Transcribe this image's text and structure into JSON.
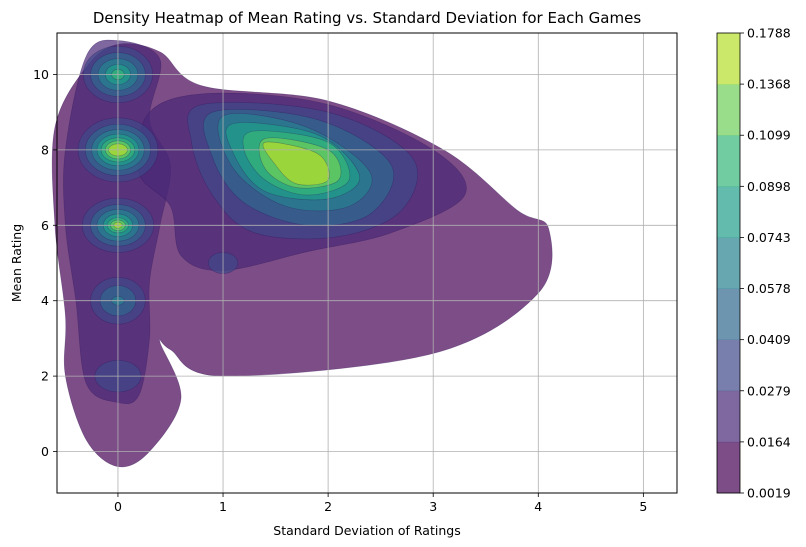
{
  "chart_data": {
    "type": "heatmap",
    "subtype": "kde-density-contour",
    "title": "Density Heatmap of Mean Rating vs. Standard Deviation for Each Games",
    "xlabel": "Standard Deviation of Ratings",
    "ylabel": "Mean Rating",
    "xlim": [
      -0.58,
      5.32
    ],
    "ylim": [
      -1.1,
      11.1
    ],
    "xticks": [
      0,
      1,
      2,
      3,
      4,
      5
    ],
    "yticks": [
      0,
      2,
      4,
      6,
      8,
      10
    ],
    "grid": true,
    "colormap": "viridis",
    "alpha": 0.7,
    "colorbar": {
      "levels": [
        "0.0019",
        "0.0164",
        "0.0279",
        "0.0409",
        "0.0578",
        "0.0743",
        "0.0898",
        "0.1099",
        "0.1368",
        "0.1788"
      ],
      "colors": [
        "#440154",
        "#482878",
        "#3e4989",
        "#31688e",
        "#26828e",
        "#1f9e89",
        "#35b779",
        "#6ece58",
        "#b5de2b"
      ]
    },
    "density_regions": [
      {
        "name": "outer-envelope",
        "level": 0,
        "points": [
          [
            -0.3,
            10.2
          ],
          [
            0.0,
            10.8
          ],
          [
            0.4,
            10.6
          ],
          [
            0.8,
            9.7
          ],
          [
            2.0,
            9.3
          ],
          [
            3.1,
            8.0
          ],
          [
            3.8,
            6.4
          ],
          [
            4.1,
            5.9
          ],
          [
            4.0,
            4.2
          ],
          [
            3.0,
            2.6
          ],
          [
            1.0,
            2.0
          ],
          [
            0.5,
            2.7
          ],
          [
            0.4,
            2.9
          ],
          [
            0.6,
            1.4
          ],
          [
            0.3,
            0.0
          ],
          [
            0.0,
            -0.4
          ],
          [
            -0.3,
            0.3
          ],
          [
            -0.5,
            2.0
          ],
          [
            -0.5,
            3.6
          ],
          [
            -0.6,
            6.0
          ],
          [
            -0.6,
            8.6
          ]
        ]
      },
      {
        "name": "left-column",
        "level": 1,
        "points": [
          [
            -0.3,
            10.5
          ],
          [
            0.0,
            10.9
          ],
          [
            0.4,
            10.4
          ],
          [
            0.3,
            8.8
          ],
          [
            0.5,
            7.6
          ],
          [
            0.4,
            6.0
          ],
          [
            0.3,
            4.5
          ],
          [
            0.3,
            3.0
          ],
          [
            0.2,
            1.5
          ],
          [
            0.0,
            1.3
          ],
          [
            -0.3,
            1.8
          ],
          [
            -0.4,
            4.0
          ],
          [
            -0.5,
            6.0
          ],
          [
            -0.5,
            8.0
          ]
        ]
      },
      {
        "name": "main-ridge",
        "level": 1,
        "points": [
          [
            0.3,
            9.0
          ],
          [
            0.9,
            9.5
          ],
          [
            2.0,
            9.2
          ],
          [
            3.0,
            8.0
          ],
          [
            3.3,
            6.8
          ],
          [
            2.6,
            5.8
          ],
          [
            1.8,
            5.3
          ],
          [
            1.0,
            4.8
          ],
          [
            0.6,
            5.2
          ],
          [
            0.5,
            6.5
          ],
          [
            0.2,
            7.4
          ]
        ]
      },
      {
        "name": "main-ridge",
        "level": 2,
        "points": [
          [
            0.8,
            9.2
          ],
          [
            2.0,
            9.0
          ],
          [
            2.8,
            7.8
          ],
          [
            2.7,
            6.4
          ],
          [
            2.1,
            5.7
          ],
          [
            1.3,
            5.8
          ],
          [
            0.9,
            6.8
          ],
          [
            0.7,
            8.2
          ]
        ]
      },
      {
        "name": "main-ridge",
        "level": 3,
        "points": [
          [
            0.9,
            9.0
          ],
          [
            1.9,
            8.8
          ],
          [
            2.6,
            7.6
          ],
          [
            2.4,
            6.3
          ],
          [
            1.8,
            6.0
          ],
          [
            1.2,
            6.6
          ],
          [
            0.9,
            7.8
          ]
        ]
      },
      {
        "name": "main-ridge",
        "level": 4,
        "points": [
          [
            1.0,
            8.9
          ],
          [
            1.8,
            8.6
          ],
          [
            2.4,
            7.4
          ],
          [
            2.2,
            6.5
          ],
          [
            1.6,
            6.5
          ],
          [
            1.1,
            7.5
          ]
        ]
      },
      {
        "name": "main-ridge",
        "level": 5,
        "points": [
          [
            1.1,
            8.7
          ],
          [
            1.9,
            8.4
          ],
          [
            2.3,
            7.3
          ],
          [
            2.0,
            6.7
          ],
          [
            1.4,
            6.9
          ],
          [
            1.1,
            7.9
          ]
        ]
      },
      {
        "name": "main-ridge",
        "level": 6,
        "points": [
          [
            1.3,
            8.5
          ],
          [
            2.0,
            8.2
          ],
          [
            2.2,
            7.2
          ],
          [
            1.8,
            6.8
          ],
          [
            1.4,
            7.2
          ],
          [
            1.2,
            8.0
          ]
        ]
      },
      {
        "name": "main-ridge",
        "level": 7,
        "points": [
          [
            1.4,
            8.3
          ],
          [
            2.0,
            8.0
          ],
          [
            2.1,
            7.2
          ],
          [
            1.7,
            7.0
          ],
          [
            1.4,
            7.5
          ]
        ]
      },
      {
        "name": "main-ridge",
        "level": 8,
        "points": [
          [
            1.4,
            8.2
          ],
          [
            1.9,
            7.9
          ],
          [
            2.0,
            7.2
          ],
          [
            1.7,
            7.1
          ],
          [
            1.5,
            7.6
          ]
        ]
      },
      {
        "name": "small-blob",
        "level": 2,
        "ellipse": [
          1.0,
          5.0,
          0.14,
          0.28
        ]
      },
      {
        "name": "peak-10",
        "level": 2,
        "ellipse": [
          0.0,
          10.0,
          0.33,
          0.75
        ]
      },
      {
        "name": "peak-10",
        "level": 3,
        "ellipse": [
          0.0,
          10.0,
          0.26,
          0.58
        ]
      },
      {
        "name": "peak-10",
        "level": 4,
        "ellipse": [
          0.0,
          10.0,
          0.19,
          0.42
        ]
      },
      {
        "name": "peak-10",
        "level": 5,
        "ellipse": [
          0.0,
          10.0,
          0.12,
          0.27
        ]
      },
      {
        "name": "peak-10",
        "level": 6,
        "ellipse": [
          0.0,
          10.0,
          0.06,
          0.14
        ]
      },
      {
        "name": "peak-8",
        "level": 2,
        "ellipse": [
          0.0,
          8.0,
          0.38,
          0.85
        ]
      },
      {
        "name": "peak-8",
        "level": 3,
        "ellipse": [
          0.0,
          8.0,
          0.31,
          0.68
        ]
      },
      {
        "name": "peak-8",
        "level": 4,
        "ellipse": [
          0.0,
          8.0,
          0.25,
          0.54
        ]
      },
      {
        "name": "peak-8",
        "level": 5,
        "ellipse": [
          0.0,
          8.0,
          0.2,
          0.42
        ]
      },
      {
        "name": "peak-8",
        "level": 6,
        "ellipse": [
          0.0,
          8.0,
          0.16,
          0.32
        ]
      },
      {
        "name": "peak-8",
        "level": 7,
        "ellipse": [
          0.0,
          8.0,
          0.12,
          0.24
        ]
      },
      {
        "name": "peak-8",
        "level": 8,
        "ellipse": [
          0.0,
          8.0,
          0.09,
          0.16
        ]
      },
      {
        "name": "peak-6",
        "level": 2,
        "ellipse": [
          0.0,
          6.0,
          0.34,
          0.72
        ]
      },
      {
        "name": "peak-6",
        "level": 3,
        "ellipse": [
          0.0,
          6.0,
          0.26,
          0.55
        ]
      },
      {
        "name": "peak-6",
        "level": 4,
        "ellipse": [
          0.0,
          6.0,
          0.2,
          0.42
        ]
      },
      {
        "name": "peak-6",
        "level": 5,
        "ellipse": [
          0.0,
          6.0,
          0.14,
          0.3
        ]
      },
      {
        "name": "peak-6",
        "level": 6,
        "ellipse": [
          0.0,
          6.0,
          0.1,
          0.2
        ]
      },
      {
        "name": "peak-6",
        "level": 7,
        "ellipse": [
          0.0,
          6.0,
          0.07,
          0.14
        ]
      },
      {
        "name": "peak-6",
        "level": 8,
        "ellipse": [
          0.0,
          6.0,
          0.04,
          0.08
        ]
      },
      {
        "name": "peak-4",
        "level": 2,
        "ellipse": [
          0.0,
          4.0,
          0.26,
          0.62
        ]
      },
      {
        "name": "peak-4",
        "level": 3,
        "ellipse": [
          0.0,
          4.0,
          0.17,
          0.4
        ]
      },
      {
        "name": "peak-4",
        "level": 4,
        "ellipse": [
          0.0,
          4.0,
          0.06,
          0.12
        ]
      },
      {
        "name": "peak-2",
        "level": 2,
        "ellipse": [
          0.0,
          2.0,
          0.22,
          0.42
        ]
      }
    ]
  }
}
